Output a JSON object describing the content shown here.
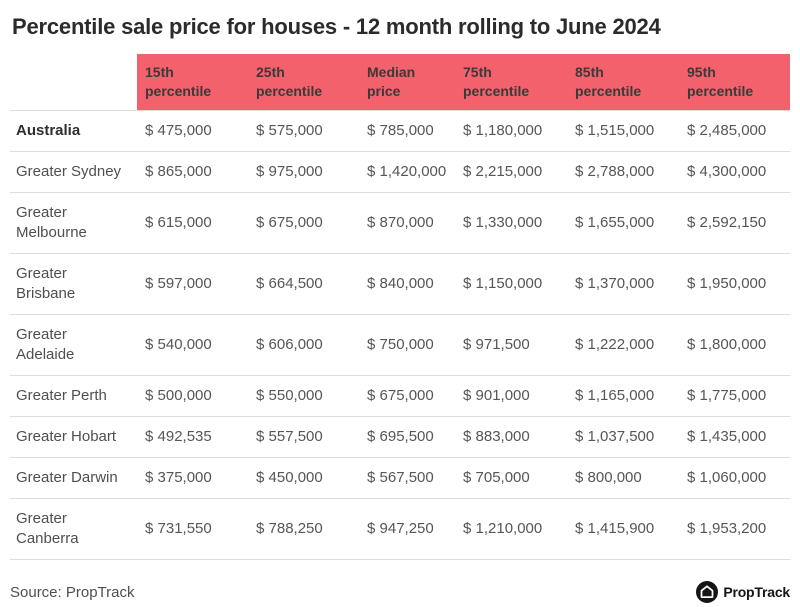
{
  "title": "Percentile sale price for houses - 12 month rolling to June 2024",
  "colors": {
    "header_bg": "#F2616C",
    "header_text": "#3A3A3A",
    "title_text": "#2B2B2B",
    "value_text": "#565659",
    "divider": "#DCDCDC",
    "logo_bg": "#151515"
  },
  "table": {
    "columns": [
      "15th\npercentile",
      "25th\npercentile",
      "Median\nprice",
      "75th\npercentile",
      "85th\npercentile",
      "95th\npercentile"
    ],
    "rows": [
      {
        "label": "Australia",
        "bold": true,
        "values": [
          "$ 475,000",
          "$ 575,000",
          "$ 785,000",
          "$ 1,180,000",
          "$ 1,515,000",
          "$ 2,485,000"
        ]
      },
      {
        "label": "Greater Sydney",
        "bold": false,
        "values": [
          "$ 865,000",
          "$ 975,000",
          "$ 1,420,000",
          "$ 2,215,000",
          "$ 2,788,000",
          "$ 4,300,000"
        ]
      },
      {
        "label": "Greater\nMelbourne",
        "bold": false,
        "values": [
          "$ 615,000",
          "$ 675,000",
          "$ 870,000",
          "$ 1,330,000",
          "$ 1,655,000",
          "$ 2,592,150"
        ]
      },
      {
        "label": "Greater\nBrisbane",
        "bold": false,
        "values": [
          "$ 597,000",
          "$ 664,500",
          "$ 840,000",
          "$ 1,150,000",
          "$ 1,370,000",
          "$ 1,950,000"
        ]
      },
      {
        "label": "Greater\nAdelaide",
        "bold": false,
        "values": [
          "$ 540,000",
          "$ 606,000",
          "$ 750,000",
          "$ 971,500",
          "$ 1,222,000",
          "$ 1,800,000"
        ]
      },
      {
        "label": "Greater Perth",
        "bold": false,
        "values": [
          "$ 500,000",
          "$ 550,000",
          "$ 675,000",
          "$ 901,000",
          "$ 1,165,000",
          "$ 1,775,000"
        ]
      },
      {
        "label": "Greater Hobart",
        "bold": false,
        "values": [
          "$ 492,535",
          "$ 557,500",
          "$ 695,500",
          "$ 883,000",
          "$ 1,037,500",
          "$ 1,435,000"
        ]
      },
      {
        "label": "Greater Darwin",
        "bold": false,
        "values": [
          "$ 375,000",
          "$ 450,000",
          "$ 567,500",
          "$ 705,000",
          "$ 800,000",
          "$ 1,060,000"
        ]
      },
      {
        "label": "Greater\nCanberra",
        "bold": false,
        "values": [
          "$ 731,550",
          "$ 788,250",
          "$ 947,250",
          "$ 1,210,000",
          "$ 1,415,900",
          "$ 1,953,200"
        ]
      }
    ]
  },
  "footer": {
    "source": "Source: PropTrack",
    "brand": "PropTrack"
  },
  "chart_data": {
    "type": "table",
    "title": "Percentile sale price for houses - 12 month rolling to June 2024",
    "columns": [
      "15th percentile",
      "25th percentile",
      "Median price",
      "75th percentile",
      "85th percentile",
      "95th percentile"
    ],
    "rows": [
      {
        "region": "Australia",
        "values": [
          475000,
          575000,
          785000,
          1180000,
          1515000,
          2485000
        ]
      },
      {
        "region": "Greater Sydney",
        "values": [
          865000,
          975000,
          1420000,
          2215000,
          2788000,
          4300000
        ]
      },
      {
        "region": "Greater Melbourne",
        "values": [
          615000,
          675000,
          870000,
          1330000,
          1655000,
          2592150
        ]
      },
      {
        "region": "Greater Brisbane",
        "values": [
          597000,
          664500,
          840000,
          1150000,
          1370000,
          1950000
        ]
      },
      {
        "region": "Greater Adelaide",
        "values": [
          540000,
          606000,
          750000,
          971500,
          1222000,
          1800000
        ]
      },
      {
        "region": "Greater Perth",
        "values": [
          500000,
          550000,
          675000,
          901000,
          1165000,
          1775000
        ]
      },
      {
        "region": "Greater Hobart",
        "values": [
          492535,
          557500,
          695500,
          883000,
          1037500,
          1435000
        ]
      },
      {
        "region": "Greater Darwin",
        "values": [
          375000,
          450000,
          567500,
          705000,
          800000,
          1060000
        ]
      },
      {
        "region": "Greater Canberra",
        "values": [
          731550,
          788250,
          947250,
          1210000,
          1415900,
          1953200
        ]
      }
    ],
    "source": "Source: PropTrack"
  }
}
